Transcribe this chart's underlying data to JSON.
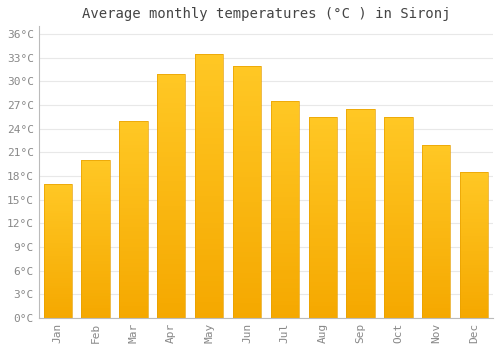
{
  "title": "Average monthly temperatures (°C ) in Sironj",
  "months": [
    "Jan",
    "Feb",
    "Mar",
    "Apr",
    "May",
    "Jun",
    "Jul",
    "Aug",
    "Sep",
    "Oct",
    "Nov",
    "Dec"
  ],
  "temperatures": [
    17,
    20,
    25,
    31,
    33.5,
    32,
    27.5,
    25.5,
    26.5,
    25.5,
    22,
    18.5
  ],
  "bar_color_top": "#FFC825",
  "bar_color_bottom": "#F5A800",
  "bar_edge_color": "#E8A000",
  "background_color": "#FFFFFF",
  "grid_color": "#E8E8E8",
  "title_color": "#444444",
  "tick_label_color": "#888888",
  "ytick_labels": [
    "0°C",
    "3°C",
    "6°C",
    "9°C",
    "12°C",
    "15°C",
    "18°C",
    "21°C",
    "24°C",
    "27°C",
    "30°C",
    "33°C",
    "36°C"
  ],
  "ytick_values": [
    0,
    3,
    6,
    9,
    12,
    15,
    18,
    21,
    24,
    27,
    30,
    33,
    36
  ],
  "ylim": [
    0,
    37
  ],
  "title_fontsize": 10,
  "tick_fontsize": 8,
  "bar_width": 0.75
}
